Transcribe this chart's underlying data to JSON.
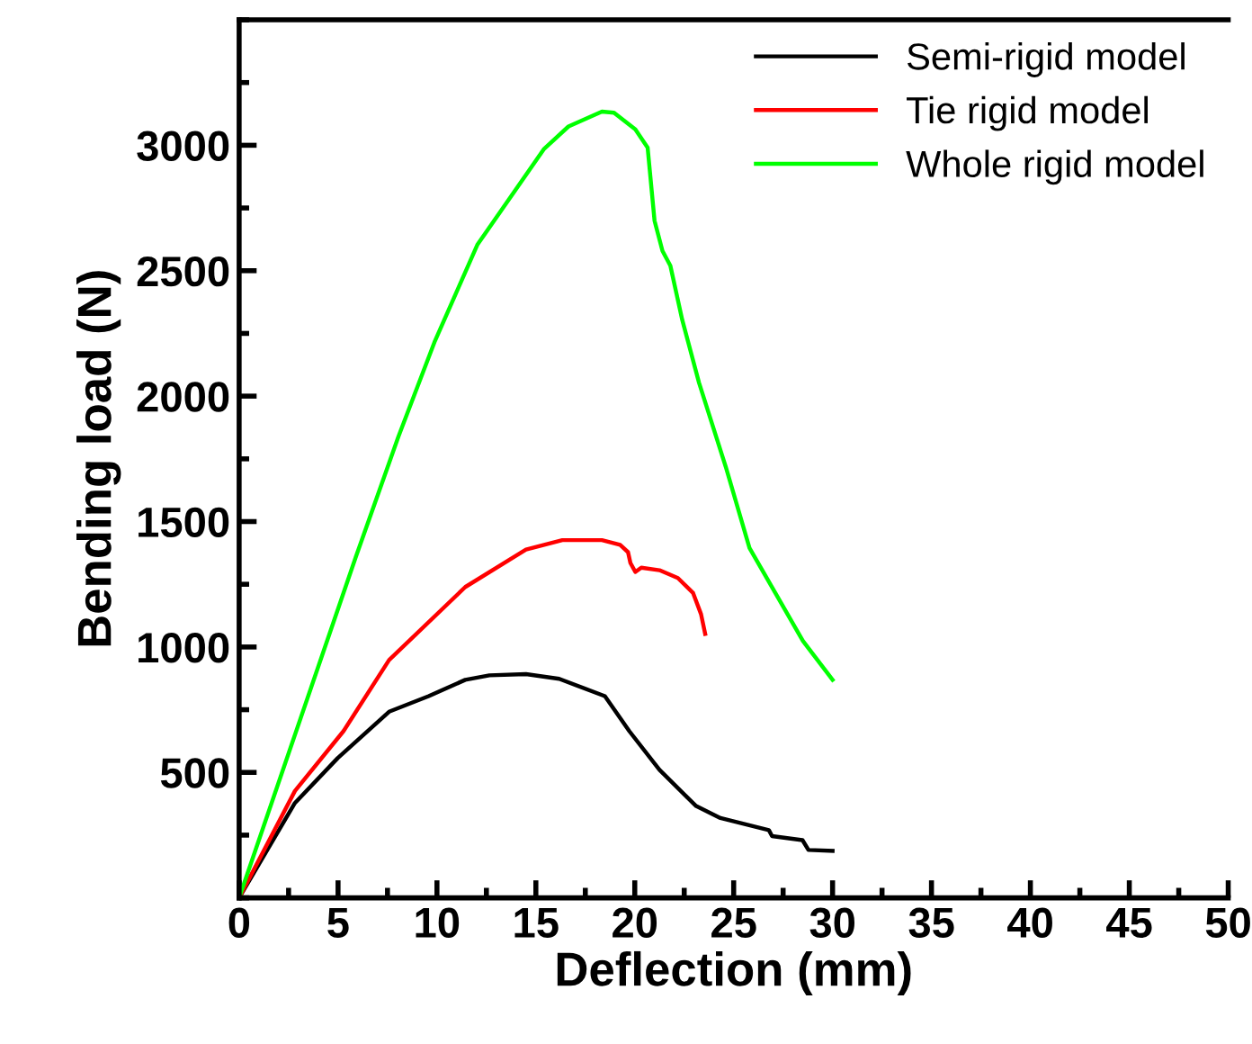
{
  "chart_data": {
    "type": "line",
    "xlabel": "Deflection (mm)",
    "ylabel": "Bending load (N)",
    "xlim": [
      0,
      50
    ],
    "ylim": [
      0,
      3500
    ],
    "xticks": [
      0,
      5,
      10,
      15,
      20,
      25,
      30,
      35,
      40,
      45,
      50
    ],
    "yticks": [
      500,
      1000,
      1500,
      2000,
      2500,
      3000
    ],
    "grid": false,
    "legend": "top right",
    "marker": "none",
    "line_style": "solid",
    "series": [
      {
        "name": "Semi-rigid model",
        "color": "#000000",
        "x": [
          0,
          2.82,
          4.98,
          7.58,
          9.58,
          11.43,
          12.65,
          14.5,
          16.18,
          18.49,
          19.72,
          21.25,
          23.1,
          24.33,
          26.78,
          26.94,
          28.48,
          28.78,
          30.0
        ],
        "values": [
          0,
          378,
          557,
          742,
          804,
          869,
          887,
          892,
          873,
          804,
          665,
          510,
          366,
          318,
          270,
          246,
          230,
          191,
          187
        ]
      },
      {
        "name": "Tie rigid model",
        "color": "#ff0000",
        "x": [
          0,
          2.82,
          5.28,
          7.58,
          11.43,
          14.5,
          16.34,
          18.34,
          19.26,
          19.66,
          19.78,
          20.03,
          20.33,
          21.25,
          22.18,
          22.95,
          23.35,
          23.56
        ],
        "values": [
          0,
          426,
          665,
          948,
          1239,
          1388,
          1426,
          1426,
          1407,
          1378,
          1335,
          1299,
          1316,
          1306,
          1275,
          1215,
          1131,
          1052
        ]
      },
      {
        "name": "Whole rigid model",
        "color": "#00ff00",
        "x": [
          0,
          5.9,
          8.05,
          9.9,
          12.04,
          15.42,
          16.65,
          18.34,
          18.95,
          20.03,
          20.65,
          21.0,
          21.4,
          21.8,
          22.4,
          23.25,
          24.6,
          25.8,
          28.5,
          30.0
        ],
        "values": [
          0,
          1359,
          1838,
          2220,
          2603,
          2986,
          3075,
          3134,
          3130,
          3063,
          2991,
          2699,
          2579,
          2520,
          2304,
          2053,
          1718,
          1395,
          1024,
          869
        ]
      }
    ]
  }
}
